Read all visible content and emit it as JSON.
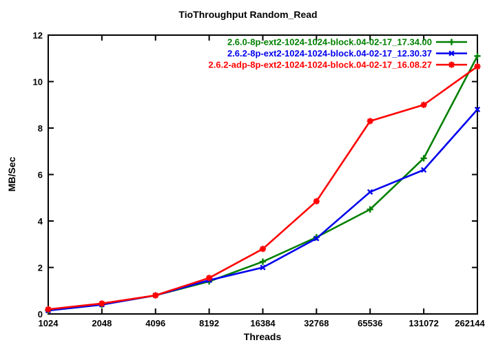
{
  "chart_data": {
    "type": "line",
    "title": "TioThroughput Random_Read",
    "xlabel": "Threads",
    "ylabel": "MB/Sec",
    "categories": [
      "1024",
      "2048",
      "4096",
      "8192",
      "16384",
      "32768",
      "65536",
      "131072",
      "262144"
    ],
    "x_scale": "log2-category",
    "ylim": [
      0,
      12
    ],
    "yticks": [
      0,
      2,
      4,
      6,
      8,
      10,
      12
    ],
    "grid": false,
    "legend_position": "top-right-inside",
    "series": [
      {
        "name": "2.6.0-8p-ext2-1024-1024-block.04-02-17_17.34.00",
        "color": "#008000",
        "marker": "plus",
        "values": [
          0.15,
          0.4,
          0.8,
          1.4,
          2.25,
          3.3,
          4.5,
          6.7,
          11.1
        ]
      },
      {
        "name": "2.6.2-8p-ext2-1024-1024-block.04-02-17_12.30.37",
        "color": "#0000ee",
        "marker": "cross",
        "values": [
          0.15,
          0.4,
          0.8,
          1.45,
          2.0,
          3.25,
          5.25,
          6.2,
          8.8
        ]
      },
      {
        "name": "2.6.2-adp-8p-ext2-1024-1024-block.04-02-17_16.08.27",
        "color": "#ff0000",
        "marker": "asterisk",
        "values": [
          0.2,
          0.45,
          0.8,
          1.55,
          2.8,
          4.85,
          8.3,
          9.0,
          10.65
        ]
      }
    ],
    "axis_color": "#000000",
    "background_color": "#ffffff"
  }
}
